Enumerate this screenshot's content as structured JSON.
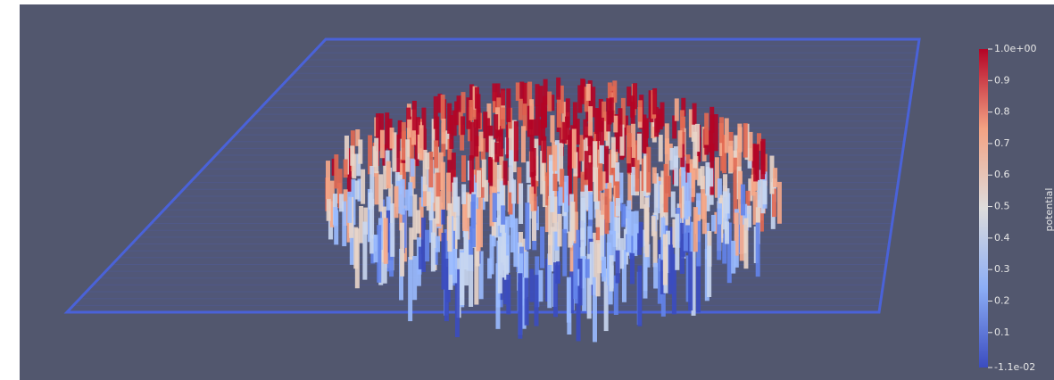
{
  "colorbar": {
    "title": "potential",
    "range": [
      -0.011,
      1
    ],
    "ticks": [
      {
        "value": 1,
        "label": "1.0e+00"
      },
      0.9,
      0.8,
      0.7,
      0.6,
      0.5,
      0.4,
      0.3,
      0.2,
      0.1,
      {
        "value": -0.011,
        "label": "-1.1e-02"
      }
    ]
  }
}
